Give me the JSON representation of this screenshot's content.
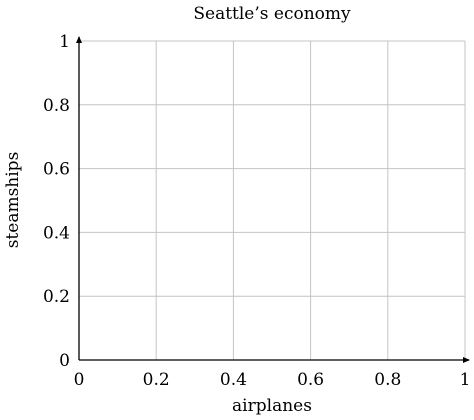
{
  "chart_data": {
    "type": "scatter",
    "title": "Seattle’s economy",
    "xlabel": "airplanes",
    "ylabel": "steamships",
    "xlim": [
      0,
      1
    ],
    "ylim": [
      0,
      1
    ],
    "x_ticks": [
      0,
      0.2,
      0.4,
      0.6,
      0.8,
      1
    ],
    "y_ticks": [
      0,
      0.2,
      0.4,
      0.6,
      0.8,
      1
    ],
    "x_tick_labels": [
      "0",
      "0.2",
      "0.4",
      "0.6",
      "0.8",
      "1"
    ],
    "y_tick_labels": [
      "0",
      "0.2",
      "0.4",
      "0.6",
      "0.8",
      "1"
    ],
    "grid": true,
    "series": []
  }
}
